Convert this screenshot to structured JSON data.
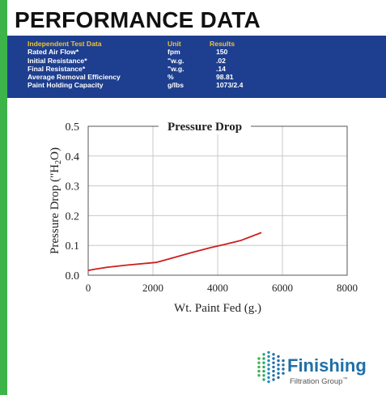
{
  "header": {
    "title": "PERFORMANCE DATA"
  },
  "specs": {
    "columns": [
      "Independent Test Data",
      "Unit",
      "Results"
    ],
    "rows": [
      [
        "Rated Air Flow*",
        "fpm",
        "150"
      ],
      [
        "Initial Resistance*",
        "\"w.g.",
        ".02"
      ],
      [
        "Final Resistance*",
        "\"w.g.",
        ".14"
      ],
      [
        "Average Removal Efficiency",
        "%",
        "98.81"
      ],
      [
        "Paint Holding Capacity",
        "g/lbs",
        "1073/2.4"
      ]
    ]
  },
  "chart_data": {
    "type": "line",
    "title": "Pressure Drop",
    "xlabel": "Wt. Paint Fed (g.)",
    "ylabel_parts": [
      "Pressure Drop (\"H",
      "2",
      "O)"
    ],
    "xlim": [
      0,
      8000
    ],
    "ylim": [
      0,
      0.5
    ],
    "x_ticks": [
      0,
      2000,
      4000,
      6000,
      8000
    ],
    "y_ticks": [
      "0.0",
      "0.1",
      "0.2",
      "0.3",
      "0.4",
      "0.5"
    ],
    "grid": true,
    "series": [
      {
        "color": "#cc1f1f",
        "x": [
          0,
          200,
          600,
          1200,
          2100,
          2600,
          3200,
          3800,
          4200,
          4700,
          5350
        ],
        "y": [
          0.016,
          0.02,
          0.027,
          0.034,
          0.043,
          0.058,
          0.076,
          0.093,
          0.103,
          0.116,
          0.143
        ]
      }
    ]
  },
  "logo": {
    "name": "Finishing",
    "subtitle": "Filtration Group",
    "mark": "™"
  },
  "colors": {
    "accent_green": "#3cb44a",
    "band_blue": "#1e3f8f",
    "header_gold": "#f2c230",
    "logo_blue": "#1f6fa8"
  }
}
